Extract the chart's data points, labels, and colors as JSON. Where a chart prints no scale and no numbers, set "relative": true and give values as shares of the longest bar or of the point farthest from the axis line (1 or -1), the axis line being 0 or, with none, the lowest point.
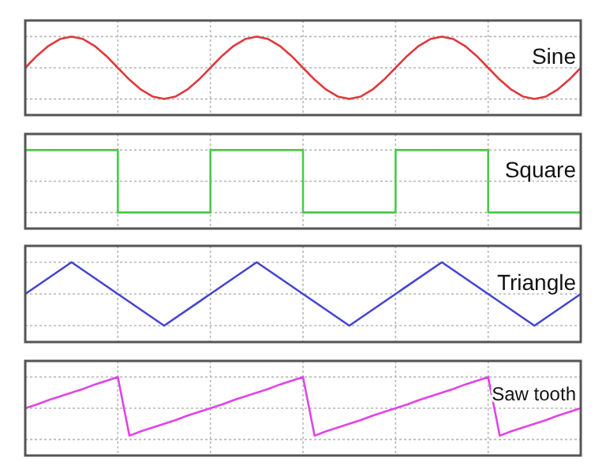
{
  "chart_data": [
    {
      "type": "line",
      "relative": true,
      "grid": true,
      "categories": [
        null,
        null,
        null,
        null,
        null,
        null,
        null,
        null,
        null,
        null,
        null,
        null,
        null,
        null,
        null,
        null,
        null,
        null,
        null,
        null,
        null,
        null,
        null,
        null,
        null,
        null,
        null,
        null,
        null,
        null,
        null,
        null,
        null,
        null,
        null,
        null,
        null,
        null,
        null,
        null,
        null,
        null,
        null,
        null,
        null,
        null,
        null,
        null,
        null
      ],
      "series": [
        {
          "name": "Sine",
          "color": "#e0393c",
          "values": [
            0.5,
            0.69,
            0.85,
            0.96,
            1,
            0.96,
            0.85,
            0.69,
            0.5,
            0.31,
            0.15,
            0.04,
            0,
            0.04,
            0.15,
            0.31,
            0.5,
            0.69,
            0.85,
            0.96,
            1,
            0.96,
            0.85,
            0.69,
            0.5,
            0.31,
            0.15,
            0.04,
            0,
            0.04,
            0.15,
            0.31,
            0.5,
            0.69,
            0.85,
            0.96,
            1,
            0.96,
            0.85,
            0.69,
            0.5,
            0.31,
            0.15,
            0.04,
            0,
            0.04,
            0.15,
            0.31,
            0.5
          ]
        }
      ]
    },
    {
      "type": "step",
      "relative": true,
      "grid": true,
      "categories": [
        null,
        null,
        null,
        null,
        null,
        null,
        null
      ],
      "series": [
        {
          "name": "Square",
          "color": "#4cc94c",
          "values": [
            1,
            0,
            1,
            0,
            1,
            0,
            0
          ]
        }
      ]
    },
    {
      "type": "line",
      "relative": true,
      "grid": true,
      "categories": [
        null,
        null,
        null,
        null,
        null,
        null,
        null,
        null,
        null,
        null,
        null,
        null,
        null
      ],
      "series": [
        {
          "name": "Triangle",
          "color": "#4444d4",
          "values": [
            0.5,
            1,
            0.5,
            0,
            0.5,
            1,
            0.5,
            0,
            0.5,
            1,
            0.5,
            0,
            0.5
          ]
        }
      ]
    },
    {
      "type": "line",
      "relative": true,
      "grid": true,
      "categories": [
        null,
        null,
        null,
        null,
        null,
        null,
        null,
        null,
        null,
        null,
        null,
        null,
        null,
        null,
        null,
        null,
        null,
        null,
        null,
        null,
        null,
        null,
        null,
        null,
        null,
        null,
        null,
        null,
        null,
        null,
        null,
        null,
        null,
        null,
        null,
        null,
        null,
        null,
        null,
        null,
        null,
        null,
        null,
        null,
        null,
        null,
        null,
        null,
        null
      ],
      "series": [
        {
          "name": "Saw tooth",
          "color": "#e044e6",
          "values": [
            0.5,
            0.56,
            0.63,
            0.69,
            0.75,
            0.81,
            0.88,
            0.94,
            1,
            0.06,
            0.13,
            0.19,
            0.25,
            0.31,
            0.38,
            0.44,
            0.5,
            0.56,
            0.63,
            0.69,
            0.75,
            0.81,
            0.88,
            0.94,
            1,
            0.06,
            0.13,
            0.19,
            0.25,
            0.31,
            0.38,
            0.44,
            0.5,
            0.56,
            0.63,
            0.69,
            0.75,
            0.81,
            0.88,
            0.94,
            1,
            0.06,
            0.13,
            0.19,
            0.25,
            0.31,
            0.38,
            0.44,
            0.5
          ]
        }
      ]
    }
  ]
}
